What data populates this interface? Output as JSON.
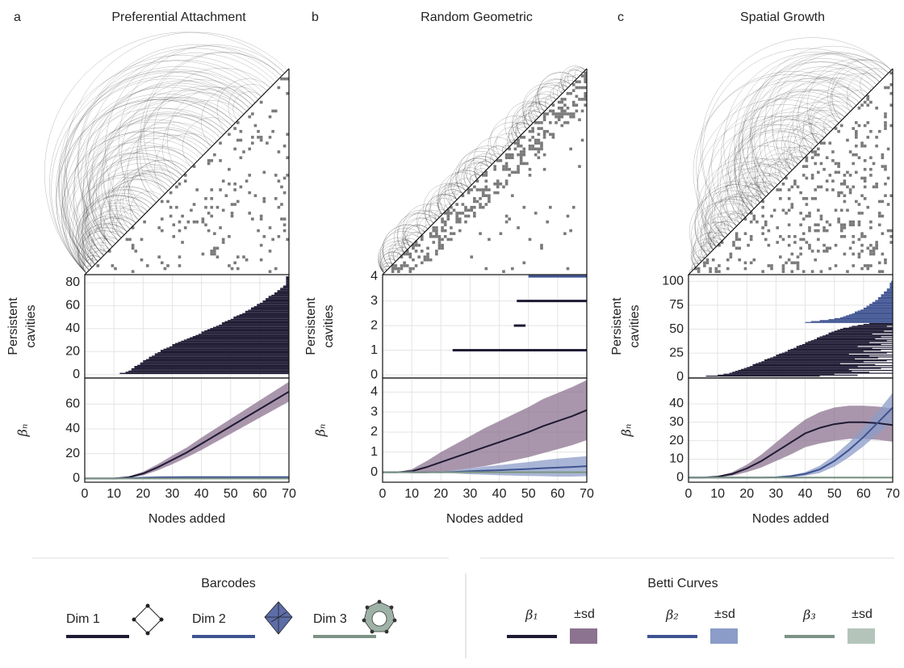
{
  "chart_data": [
    {
      "type": "barcode",
      "panel": "a",
      "title": "Preferential Attachment",
      "ylabel": [
        "Persistent",
        "cavities"
      ],
      "xlim": [
        0,
        70
      ],
      "ylim": [
        -3,
        87
      ],
      "yticks": [
        0,
        20,
        40,
        60,
        80
      ],
      "grid": true,
      "series": [
        {
          "color": "#1e1a33",
          "start": [
            12,
            14,
            15,
            16,
            16,
            17,
            17,
            18,
            19,
            19,
            20,
            20,
            21,
            22,
            22,
            23,
            24,
            24,
            25,
            26,
            26,
            27,
            28,
            29,
            30,
            30,
            31,
            32,
            33,
            34,
            35,
            36,
            37,
            38,
            39,
            40,
            40,
            41,
            42,
            43,
            44,
            45,
            46,
            47,
            47,
            48,
            49,
            50,
            51,
            51,
            52,
            53,
            54,
            55,
            55,
            56,
            57,
            57,
            58,
            59,
            59,
            60,
            61,
            61,
            62,
            62,
            63,
            63,
            64,
            65,
            65,
            66,
            66,
            67,
            67,
            68,
            68,
            69,
            69,
            69,
            69,
            69,
            69,
            69,
            69
          ],
          "end": [
            70,
            70,
            70,
            70,
            70,
            70,
            70,
            70,
            70,
            70,
            70,
            70,
            70,
            70,
            70,
            70,
            70,
            70,
            70,
            70,
            70,
            70,
            70,
            70,
            70,
            70,
            70,
            70,
            70,
            70,
            70,
            70,
            70,
            70,
            70,
            70,
            70,
            70,
            70,
            70,
            70,
            70,
            70,
            70,
            70,
            70,
            70,
            70,
            70,
            70,
            70,
            70,
            70,
            70,
            70,
            70,
            70,
            70,
            70,
            70,
            70,
            70,
            70,
            70,
            70,
            70,
            70,
            70,
            70,
            70,
            70,
            70,
            70,
            70,
            70,
            70,
            70,
            70,
            70,
            70,
            70,
            70,
            70,
            70,
            70
          ]
        }
      ]
    },
    {
      "type": "line",
      "xlabel": "Nodes added",
      "ylabel": "βₙ",
      "x": [
        0,
        5,
        10,
        15,
        20,
        25,
        30,
        35,
        40,
        45,
        50,
        55,
        60,
        65,
        70
      ],
      "xlim": [
        0,
        70
      ],
      "xticks": [
        0,
        10,
        20,
        30,
        40,
        50,
        60,
        70
      ],
      "ylim": [
        -3,
        81
      ],
      "yticks": [
        0,
        20,
        40,
        60
      ],
      "grid": true,
      "series": [
        {
          "color": "#1e1a33",
          "band_color": "#8c7390",
          "values": [
            0,
            0,
            0,
            1,
            4,
            9,
            15,
            21,
            28,
            35,
            42,
            49,
            56,
            63,
            70
          ],
          "sd": [
            0,
            0,
            0,
            0.5,
            1.5,
            2.5,
            3.5,
            4,
            5,
            5.5,
            6,
            6.5,
            7,
            7.5,
            8
          ]
        },
        {
          "color": "#3f5391",
          "band_color": "#8c9cc8",
          "values": [
            0,
            0,
            0,
            0.3,
            0.6,
            0.8,
            0.9,
            1,
            1,
            1,
            1,
            1,
            1,
            1,
            1
          ],
          "sd": [
            0,
            0,
            0,
            0.5,
            0.8,
            1,
            1,
            1,
            1,
            1,
            1,
            1,
            1,
            1,
            1
          ]
        },
        {
          "color": "#7c9385",
          "band_color": "#b4c4bb",
          "values": [
            0,
            0,
            0,
            0,
            0,
            0,
            0,
            0,
            0,
            0,
            0,
            0,
            0,
            0,
            0
          ],
          "sd": [
            0,
            0,
            0,
            0.3,
            0.3,
            0.3,
            0.3,
            0.3,
            0.3,
            0.3,
            0.3,
            0.3,
            0.3,
            0.3,
            0.3
          ]
        }
      ]
    },
    {
      "type": "barcode",
      "panel": "b",
      "title": "Random Geometric",
      "ylabel": [
        "Persistent",
        "cavities"
      ],
      "xlim": [
        0,
        70
      ],
      "ylim": [
        -0.13,
        4.07
      ],
      "yticks": [
        0,
        1,
        2,
        3,
        4
      ],
      "grid": true,
      "series": [
        {
          "color": "#1e1a33",
          "start": [
            24,
            45,
            46
          ],
          "end": [
            70,
            49,
            70
          ]
        },
        {
          "color": "#3f5391",
          "start": [
            50
          ],
          "end": [
            70
          ]
        }
      ]
    },
    {
      "type": "line",
      "xlabel": "Nodes added",
      "ylabel": "βₙ",
      "x": [
        0,
        5,
        10,
        15,
        20,
        25,
        30,
        35,
        40,
        45,
        50,
        55,
        60,
        65,
        70
      ],
      "xlim": [
        0,
        70
      ],
      "xticks": [
        0,
        10,
        20,
        30,
        40,
        50,
        60,
        70
      ],
      "ylim": [
        -0.5,
        4.7
      ],
      "yticks": [
        0,
        1,
        2,
        3,
        4
      ],
      "grid": true,
      "series": [
        {
          "color": "#1e1a33",
          "band_color": "#8c7390",
          "values": [
            0,
            0,
            0.05,
            0.25,
            0.5,
            0.75,
            1.0,
            1.25,
            1.5,
            1.75,
            2.0,
            2.3,
            2.55,
            2.8,
            3.1
          ],
          "sd": [
            0,
            0,
            0.1,
            0.3,
            0.5,
            0.65,
            0.8,
            0.95,
            1.05,
            1.15,
            1.25,
            1.35,
            1.4,
            1.45,
            1.5
          ]
        },
        {
          "color": "#3f5391",
          "band_color": "#8c9cc8",
          "values": [
            0,
            0,
            0,
            0,
            0,
            0.02,
            0.05,
            0.08,
            0.1,
            0.13,
            0.16,
            0.2,
            0.23,
            0.26,
            0.3
          ],
          "sd": [
            0,
            0,
            0,
            0,
            0.02,
            0.08,
            0.15,
            0.2,
            0.25,
            0.3,
            0.35,
            0.4,
            0.45,
            0.48,
            0.5
          ]
        },
        {
          "color": "#7c9385",
          "band_color": "#b4c4bb",
          "values": [
            0,
            0,
            0,
            0,
            0,
            0,
            0,
            0,
            0,
            0,
            0,
            0,
            0,
            0,
            0
          ],
          "sd": [
            0,
            0,
            0,
            0,
            0.05,
            0.05,
            0.05,
            0.05,
            0.05,
            0.05,
            0.05,
            0.05,
            0.05,
            0.05,
            0.05
          ]
        }
      ]
    },
    {
      "type": "barcode",
      "panel": "c",
      "title": "Spatial Growth",
      "ylabel": [
        "Persistent",
        "cavities"
      ],
      "xlim": [
        0,
        70
      ],
      "ylim": [
        -1,
        107
      ],
      "yticks": [
        0,
        25,
        50,
        75,
        100
      ],
      "grid": true,
      "series": [
        {
          "color": "#1e1a33",
          "start": [
            6,
            10,
            12,
            14,
            15,
            16,
            17,
            18,
            19,
            20,
            21,
            22,
            22,
            23,
            24,
            25,
            26,
            26,
            27,
            28,
            29,
            30,
            30,
            31,
            32,
            33,
            34,
            34,
            35,
            36,
            37,
            37,
            38,
            39,
            40,
            40,
            41,
            42,
            43,
            44,
            44,
            45,
            46,
            47,
            48,
            48,
            49,
            50,
            51,
            52,
            53,
            55,
            56,
            58,
            60,
            62
          ],
          "end": [
            45,
            58,
            50,
            70,
            62,
            56,
            70,
            55,
            66,
            70,
            58,
            70,
            64,
            52,
            70,
            60,
            68,
            70,
            57,
            65,
            70,
            62,
            70,
            55,
            68,
            70,
            60,
            66,
            70,
            63,
            70,
            58,
            70,
            66,
            70,
            62,
            70,
            68,
            70,
            64,
            70,
            66,
            70,
            70,
            63,
            70,
            70,
            67,
            70,
            70,
            70,
            70,
            68,
            70,
            70,
            70
          ]
        },
        {
          "color": "#3f5391",
          "start": [
            40,
            42,
            45,
            48,
            50,
            52,
            53,
            54,
            55,
            56,
            57,
            57,
            58,
            59,
            60,
            60,
            61,
            61,
            62,
            62,
            63,
            63,
            64,
            64,
            65,
            65,
            65,
            66,
            66,
            66,
            67,
            67,
            67,
            68,
            68,
            68,
            69,
            69,
            69,
            69,
            69,
            69,
            69.5,
            69.5
          ],
          "end": [
            70,
            70,
            70,
            70,
            70,
            70,
            70,
            70,
            70,
            70,
            70,
            70,
            70,
            70,
            70,
            70,
            70,
            70,
            70,
            70,
            70,
            70,
            70,
            70,
            70,
            70,
            70,
            70,
            70,
            70,
            70,
            70,
            70,
            70,
            70,
            70,
            70,
            70,
            70,
            70,
            70,
            70,
            70,
            70
          ]
        }
      ]
    },
    {
      "type": "line",
      "xlabel": "Nodes added",
      "ylabel": "βₙ",
      "x": [
        0,
        5,
        10,
        15,
        20,
        25,
        30,
        35,
        40,
        45,
        50,
        55,
        60,
        65,
        70
      ],
      "xlim": [
        0,
        70
      ],
      "xticks": [
        0,
        10,
        20,
        30,
        40,
        50,
        60,
        70
      ],
      "ylim": [
        -2.5,
        54
      ],
      "yticks": [
        0,
        10,
        20,
        30,
        40
      ],
      "grid": true,
      "series": [
        {
          "color": "#1e1a33",
          "band_color": "#8c7390",
          "values": [
            0,
            0,
            0.5,
            2,
            5,
            9,
            14,
            19,
            24,
            27,
            29,
            30,
            30,
            29.5,
            28.5
          ],
          "sd": [
            0,
            0,
            0.3,
            1,
            2,
            3.5,
            5,
            6.5,
            7.5,
            8.5,
            9,
            9,
            9,
            9,
            9
          ]
        },
        {
          "color": "#3f5391",
          "band_color": "#8c9cc8",
          "values": [
            0,
            0,
            0,
            0,
            0,
            0,
            0.2,
            0.8,
            2,
            4.5,
            9,
            15,
            22,
            30,
            38
          ],
          "sd": [
            0,
            0,
            0,
            0,
            0,
            0,
            0.2,
            0.5,
            1,
            2,
            3,
            4,
            5,
            6,
            8
          ]
        },
        {
          "color": "#7c9385",
          "band_color": "#b4c4bb",
          "values": [
            0,
            0,
            0,
            0,
            0,
            0,
            0,
            0,
            0,
            0,
            0,
            0,
            0,
            0,
            0
          ],
          "sd": [
            0,
            0,
            0,
            0.5,
            0.5,
            0.5,
            0.5,
            0.5,
            0.5,
            0.5,
            0.5,
            0.5,
            0.5,
            0.5,
            0.5
          ]
        }
      ]
    }
  ],
  "legend": {
    "barcodes": {
      "title": "Barcodes",
      "items": [
        {
          "label": "Dim 1",
          "color": "#1e1a33"
        },
        {
          "label": "Dim 2",
          "color": "#3f5391"
        },
        {
          "label": "Dim 3",
          "color": "#7c9385"
        }
      ]
    },
    "betti": {
      "title": "Betti Curves",
      "items": [
        {
          "label": "β₁",
          "color": "#1e1a33",
          "band_label": "±sd",
          "band_color": "#8c7390"
        },
        {
          "label": "β₂",
          "color": "#3f5391",
          "band_label": "±sd",
          "band_color": "#8c9cc8"
        },
        {
          "label": "β₃",
          "color": "#7c9385",
          "band_label": "±sd",
          "band_color": "#b4c4bb"
        }
      ]
    }
  }
}
